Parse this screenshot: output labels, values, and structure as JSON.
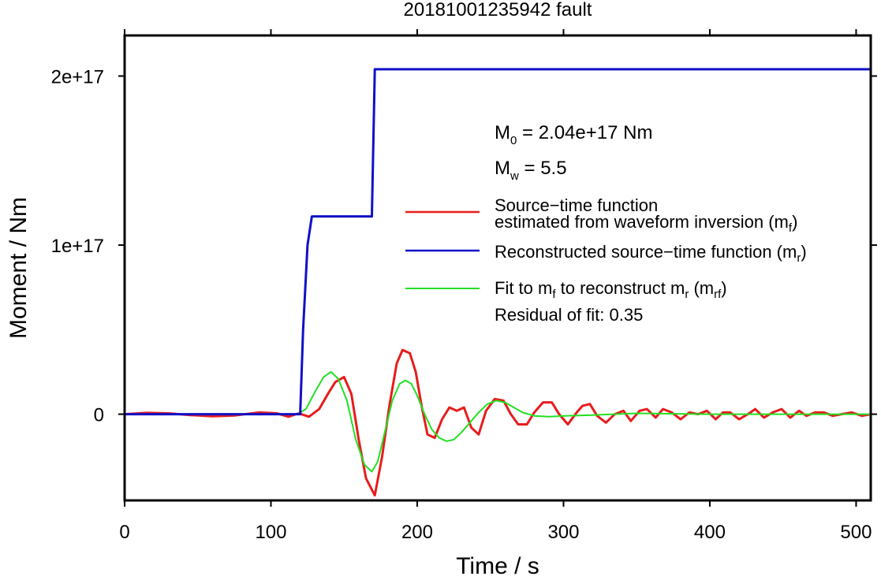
{
  "chart_data": {
    "type": "line",
    "title": "20181001235942 fault",
    "xlabel": "Time / s",
    "ylabel": "Moment / Nm",
    "xlim": [
      0,
      510
    ],
    "ylim": [
      -5.1e+16,
      2.24e+17
    ],
    "x_ticks": [
      0,
      100,
      200,
      300,
      400,
      500
    ],
    "x_tick_labels": [
      "0",
      "100",
      "200",
      "300",
      "400",
      "500"
    ],
    "y_ticks": [
      0,
      1e+17,
      2e+17
    ],
    "y_tick_labels": [
      "0",
      "1e+17",
      "2e+17"
    ],
    "grid": false,
    "legend_position": "right",
    "annotations": {
      "m0_label": "M",
      "m0_sub": "0",
      "m0_value": " = 2.04e+17 Nm",
      "mw_label": "M",
      "mw_sub": "w",
      "mw_value": " = 5.5",
      "residual": "Residual of fit: 0.35"
    },
    "legend": [
      {
        "line1": "Source−time function",
        "line2": "estimated from waveform inversion (m",
        "sub": "f",
        "tail": ")",
        "color": "#e81c1c"
      },
      {
        "line1": "Reconstructed source−time function (m",
        "sub": "r",
        "tail": ")",
        "color": "#1010c8"
      },
      {
        "line1": "Fit to m",
        "sub": "f",
        "mid": " to reconstruct m",
        "sub2": "r",
        "mid2": " (m",
        "sub3": "rf",
        "tail": ")",
        "color": "#22e022"
      }
    ],
    "series": [
      {
        "color": "#1010c8",
        "x": [
          0,
          120,
          122,
          125,
          128,
          132,
          169,
          171,
          173,
          510
        ],
        "y": [
          0,
          0,
          5e+16,
          1e+17,
          1.17e+17,
          1.17e+17,
          1.17e+17,
          2.04e+17,
          2.04e+17,
          2.04e+17
        ]
      },
      {
        "color": "#e81c1c",
        "x": [
          0,
          15,
          30,
          45,
          60,
          75,
          92,
          104,
          112,
          119,
          126,
          133,
          139,
          144,
          150,
          155,
          160,
          165,
          171,
          176,
          181,
          186,
          190,
          195,
          199,
          203,
          207,
          212,
          217,
          222,
          227,
          232,
          237,
          242,
          247,
          253,
          259,
          264,
          269,
          275,
          280,
          286,
          292,
          297,
          303,
          309,
          313,
          318,
          323,
          329,
          335,
          341,
          346,
          352,
          357,
          363,
          368,
          374,
          380,
          386,
          392,
          398,
          404,
          409,
          414,
          420,
          426,
          431,
          437,
          443,
          449,
          455,
          461,
          466,
          472,
          478,
          484,
          490,
          497,
          504,
          510
        ],
        "y": [
          0,
          800000000000000.0,
          500000000000000.0,
          -500000000000000.0,
          -1200000000000000.0,
          -800000000000000.0,
          1000000000000000.0,
          500000000000000.0,
          -1500000000000000.0,
          500000000000000.0,
          -1500000000000000.0,
          3000000000000000.0,
          1.2e+16,
          1.9e+16,
          2.2e+16,
          1.2e+16,
          -1.5e+16,
          -3.8e+16,
          -4.8e+16,
          -2.5e+16,
          5000000000000000.0,
          3e+16,
          3.8e+16,
          3.6e+16,
          2.5e+16,
          5000000000000000.0,
          -1.2e+16,
          -1.4e+16,
          -3000000000000000.0,
          4000000000000000.0,
          2000000000000000.0,
          4000000000000000.0,
          -8000000000000000.0,
          -1.2e+16,
          2000000000000000.0,
          9000000000000000.0,
          8000000000000000.0,
          0.0,
          -6000000000000000.0,
          -6000000000000000.0,
          1000000000000000.0,
          7000000000000000.0,
          7000000000000000.0,
          0.0,
          -6000000000000000.0,
          1000000000000000.0,
          5000000000000000.0,
          6000000000000000.0,
          -1000000000000000.0,
          -5000000000000000.0,
          0.0,
          2000000000000000.0,
          -4000000000000000.0,
          2000000000000000.0,
          3000000000000000.0,
          -2000000000000000.0,
          3000000000000000.0,
          1000000000000000.0,
          -3000000000000000.0,
          1000000000000000.0,
          0.0,
          2000000000000000.0,
          -3000000000000000.0,
          1000000000000000.0,
          1000000000000000.0,
          -3000000000000000.0,
          0.0,
          3000000000000000.0,
          -2000000000000000.0,
          1000000000000000.0,
          3000000000000000.0,
          -2000000000000000.0,
          2000000000000000.0,
          -1000000000000000.0,
          1000000000000000.0,
          1000000000000000.0,
          -1000000000000000.0,
          0.0,
          1000000000000000.0,
          -1000000000000000.0,
          0.0
        ]
      },
      {
        "color": "#22e022",
        "x": [
          0,
          60,
          110,
          118,
          124,
          130,
          136,
          141,
          146,
          152,
          158,
          164,
          169,
          173,
          178,
          183,
          188,
          192,
          196,
          200,
          205,
          210,
          215,
          220,
          225,
          230,
          236,
          242,
          248,
          254,
          260,
          266,
          272,
          280,
          290,
          300,
          320,
          350,
          400,
          450,
          510
        ],
        "y": [
          0,
          0,
          0,
          0,
          3000000000000000.0,
          1.3e+16,
          2.2e+16,
          2.5e+16,
          2.1e+16,
          8000000000000000.0,
          -1.5e+16,
          -3e+16,
          -3.4e+16,
          -2.8e+16,
          -1e+16,
          8000000000000000.0,
          1.8e+16,
          2e+16,
          1.8e+16,
          1.1e+16,
          0.0,
          -9000000000000000.0,
          -1.4e+16,
          -1.6e+16,
          -1.5e+16,
          -1.1e+16,
          -5000000000000000.0,
          1000000000000000.0,
          6000000000000000.0,
          8000000000000000.0,
          7000000000000000.0,
          4000000000000000.0,
          1000000000000000.0,
          -1000000000000000.0,
          -1500000000000000.0,
          -1000000000000000.0,
          -500000000000000.0,
          500000000000000.0,
          0.0,
          0.0,
          0.0
        ]
      }
    ]
  }
}
